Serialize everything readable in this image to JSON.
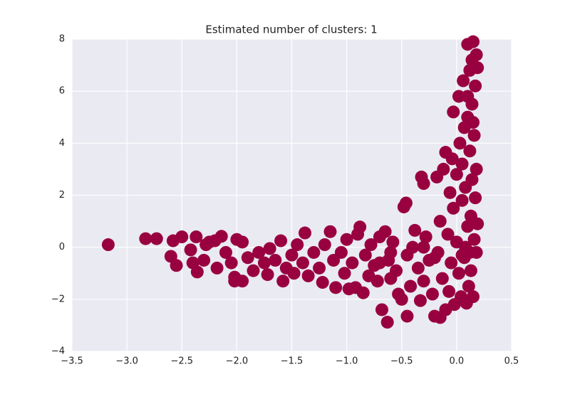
{
  "chart_data": {
    "type": "scatter",
    "title": "Estimated number of clusters: 1",
    "color": "#990040",
    "grid": true,
    "xlim": [
      -3.5,
      0.5
    ],
    "ylim": [
      -4,
      8
    ],
    "xticks": [
      {
        "value": -3.5,
        "label": "−3.5"
      },
      {
        "value": -3.0,
        "label": "−3.0"
      },
      {
        "value": -2.5,
        "label": "−2.5"
      },
      {
        "value": -2.0,
        "label": "−2.0"
      },
      {
        "value": -1.5,
        "label": "−1.5"
      },
      {
        "value": -1.0,
        "label": "−1.0"
      },
      {
        "value": -0.5,
        "label": "−0.5"
      },
      {
        "value": 0,
        "label": "0.0"
      },
      {
        "value": 0.5,
        "label": "0.5"
      }
    ],
    "yticks": [
      {
        "value": -4,
        "label": "−4"
      },
      {
        "value": -2,
        "label": "−2"
      },
      0,
      2,
      4,
      6,
      8
    ],
    "x": [
      -3.17,
      -2.83,
      -2.73,
      -2.6,
      -2.58,
      -2.55,
      -2.5,
      -2.42,
      -2.4,
      -2.37,
      -2.36,
      -2.3,
      -2.28,
      -2.25,
      -2.2,
      -2.18,
      -2.14,
      -2.1,
      -2.05,
      -2.02,
      -2.02,
      -2.0,
      -1.95,
      -1.95,
      -1.9,
      -1.85,
      -1.8,
      -1.75,
      -1.72,
      -1.7,
      -1.65,
      -1.6,
      -1.58,
      -1.55,
      -1.5,
      -1.48,
      -1.45,
      -1.4,
      -1.38,
      -1.35,
      -1.3,
      -1.25,
      -1.22,
      -1.2,
      -1.15,
      -1.12,
      -1.1,
      -1.05,
      -1.02,
      -1.0,
      -0.98,
      -0.95,
      -0.92,
      -0.9,
      -0.88,
      -0.85,
      -0.83,
      -0.8,
      -0.78,
      -0.75,
      -0.72,
      -0.7,
      -0.68,
      -0.65,
      -0.63,
      -0.62,
      -0.6,
      -0.58,
      -0.55,
      -0.53,
      -0.5,
      -0.48,
      -0.46,
      -0.45,
      -0.45,
      -0.42,
      -0.4,
      -0.38,
      -0.35,
      -0.33,
      -0.32,
      -0.3,
      -0.3,
      -0.28,
      -0.25,
      -0.22,
      -0.2,
      -0.18,
      -0.17,
      -0.15,
      -0.15,
      -0.13,
      -0.12,
      -0.1,
      -0.1,
      -0.08,
      -0.07,
      -0.06,
      -0.05,
      -0.04,
      -0.03,
      -0.03,
      -0.02,
      0.0,
      0.0,
      0.02,
      0.02,
      0.03,
      0.04,
      0.05,
      0.05,
      0.06,
      0.07,
      0.07,
      0.08,
      0.09,
      0.1,
      0.1,
      0.1,
      0.11,
      0.12,
      0.12,
      0.13,
      0.13,
      0.14,
      0.14,
      0.15,
      0.15,
      0.16,
      0.16,
      0.17,
      0.17,
      0.18,
      0.18,
      0.18,
      0.19,
      0.19,
      0.14,
      0.1,
      0.15,
      0.12,
      0.08,
      -0.6,
      -0.7,
      -0.2,
      -0.3,
      0.05
    ],
    "y": [
      0.1,
      0.33,
      0.33,
      -0.35,
      0.25,
      -0.7,
      0.4,
      -0.1,
      -0.6,
      0.4,
      -0.95,
      -0.5,
      0.1,
      0.2,
      0.25,
      -0.8,
      0.42,
      -0.2,
      -0.6,
      -1.15,
      -1.3,
      0.3,
      -1.3,
      0.2,
      -0.4,
      -0.9,
      -0.2,
      -0.6,
      -1.05,
      -0.05,
      -0.5,
      0.25,
      -1.3,
      -0.8,
      -0.3,
      -1.0,
      0.1,
      -0.6,
      0.55,
      -1.1,
      -0.2,
      -0.8,
      -1.35,
      0.1,
      0.6,
      -0.5,
      -1.55,
      -0.2,
      -1.0,
      0.3,
      -1.6,
      -0.6,
      -1.55,
      0.5,
      0.78,
      -1.75,
      -0.3,
      -1.1,
      0.1,
      -0.7,
      -1.3,
      0.4,
      -2.4,
      0.6,
      -2.88,
      -0.5,
      -1.2,
      0.2,
      -0.9,
      -1.8,
      -2.0,
      1.55,
      1.7,
      -2.65,
      -0.3,
      -1.5,
      0.0,
      0.65,
      -0.8,
      -2.05,
      2.7,
      2.45,
      -1.3,
      0.4,
      -0.5,
      -1.8,
      -2.65,
      2.7,
      -0.2,
      -2.7,
      1.0,
      -1.2,
      3.0,
      -2.4,
      3.65,
      0.5,
      -1.7,
      2.1,
      -0.6,
      3.4,
      1.5,
      5.2,
      -2.2,
      0.2,
      2.8,
      -1.0,
      5.8,
      4.0,
      -1.9,
      1.8,
      3.2,
      6.4,
      -0.4,
      4.6,
      2.3,
      -2.15,
      0.8,
      5.0,
      7.8,
      -1.5,
      3.7,
      6.8,
      1.2,
      -0.9,
      2.6,
      5.5,
      7.9,
      -1.9,
      0.3,
      4.3,
      6.2,
      1.9,
      7.4,
      -0.2,
      3.0,
      6.9,
      0.9,
      7.2,
      5.8,
      4.8,
      -0.2,
      0.0,
      -0.2,
      -0.6,
      -0.4,
      0.0,
      -0.3
    ]
  }
}
